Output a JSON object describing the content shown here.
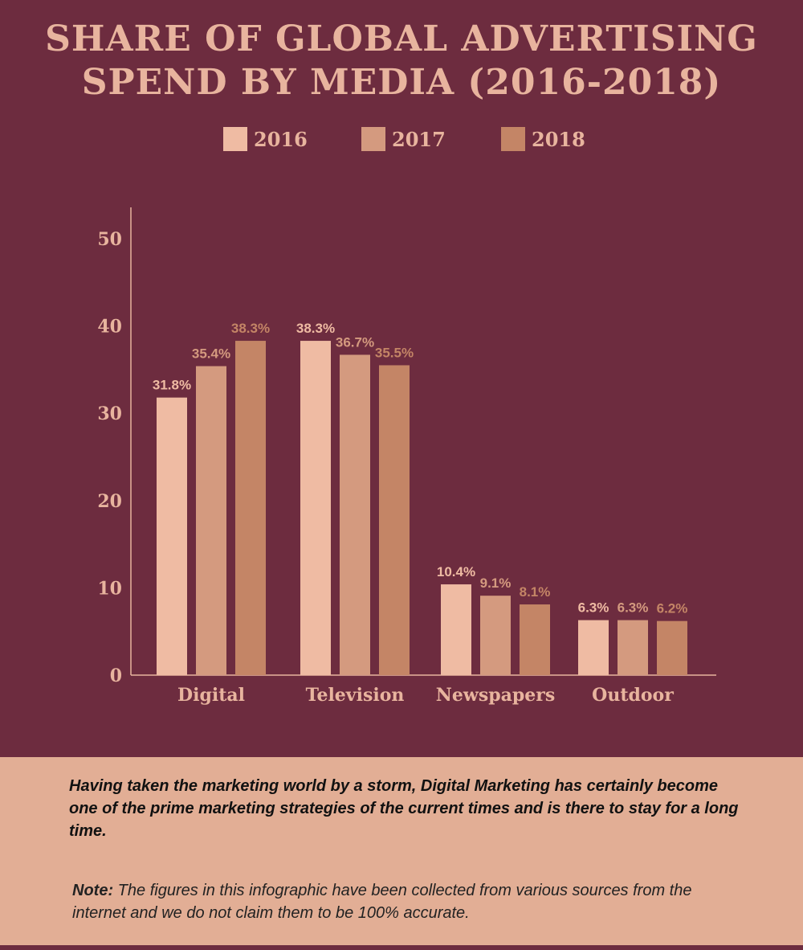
{
  "title_line1": "SHARE OF GLOBAL ADVERTISING",
  "title_line2": "SPEND BY MEDIA (2016-2018)",
  "colors": {
    "background": "#6d2c3f",
    "accent_text": "#e8b49e",
    "footer_bg": "#e2ae95"
  },
  "chart_data": {
    "type": "bar",
    "categories": [
      "Digital",
      "Television",
      "Newspapers",
      "Outdoor"
    ],
    "series": [
      {
        "name": "2016",
        "color": "#efbba3",
        "values": [
          31.8,
          38.3,
          10.4,
          6.3
        ],
        "labels": [
          "31.8%",
          "38.3%",
          "10.4%",
          "6.3%"
        ]
      },
      {
        "name": "2017",
        "color": "#d49a7f",
        "values": [
          35.4,
          36.7,
          9.1,
          6.3
        ],
        "labels": [
          "35.4%",
          "36.7%",
          "9.1%",
          "6.3%"
        ]
      },
      {
        "name": "2018",
        "color": "#c48566",
        "values": [
          38.3,
          35.5,
          8.1,
          6.2
        ],
        "labels": [
          "38.3%",
          "35.5%",
          "8.1%",
          "6.2%"
        ]
      }
    ],
    "y_ticks": [
      "0",
      "10",
      "20",
      "30",
      "40",
      "50"
    ],
    "ylim": [
      0,
      50
    ],
    "grid": false,
    "legend_position": "top-center"
  },
  "footer": {
    "main_text": "Having taken the marketing world by a storm, Digital Marketing has certainly become one of the prime marketing strategies of the current times and is there to stay for a long time.",
    "note_label": "Note:",
    "note_text": "The figures in this infographic have been collected from various sources from the internet and we do not claim them to be 100% accurate."
  }
}
